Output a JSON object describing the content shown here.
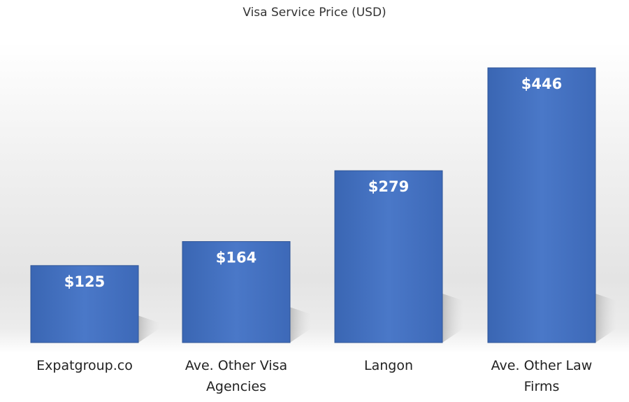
{
  "chart_data": {
    "type": "bar",
    "title": "Visa Service Price (USD)",
    "categories": [
      "Expatgroup.co",
      "Ave. Other Visa Agencies",
      "Langon",
      "Ave. Other Law Firms"
    ],
    "values": [
      125,
      164,
      279,
      446
    ],
    "value_labels": [
      "$125",
      "$164",
      "$279",
      "$446"
    ],
    "xlabel": "",
    "ylabel": "",
    "ylim": [
      0,
      446
    ],
    "grid": false,
    "legend": "none",
    "bar_color": "#4472C4"
  }
}
